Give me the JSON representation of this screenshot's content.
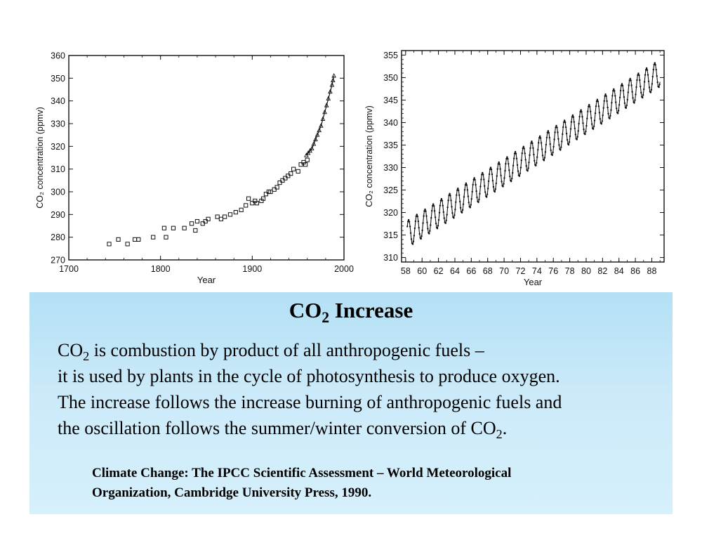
{
  "chart_data": [
    {
      "type": "scatter",
      "title": "",
      "xlabel": "Year",
      "ylabel": "CO₂ concentration (ppmv)",
      "xlim": [
        1700,
        2000
      ],
      "ylim": [
        270,
        360
      ],
      "x_ticks": [
        "1700",
        "1800",
        "1900",
        "2000"
      ],
      "y_ticks": [
        "270",
        "280",
        "290",
        "300",
        "310",
        "320",
        "330",
        "340",
        "350",
        "360"
      ],
      "grid": false,
      "series": [
        {
          "marker": "square",
          "points": [
            [
              1744,
              277
            ],
            [
              1754,
              279
            ],
            [
              1764,
              277
            ],
            [
              1772,
              279
            ],
            [
              1776,
              279
            ],
            [
              1792,
              280
            ],
            [
              1804,
              284
            ],
            [
              1806,
              280
            ],
            [
              1814,
              284
            ],
            [
              1826,
              284
            ],
            [
              1834,
              286
            ],
            [
              1838,
              283
            ],
            [
              1840,
              287
            ],
            [
              1846,
              286
            ],
            [
              1849,
              287
            ],
            [
              1852,
              288
            ],
            [
              1862,
              289
            ],
            [
              1866,
              288
            ],
            [
              1870,
              289
            ],
            [
              1876,
              290
            ],
            [
              1882,
              291
            ],
            [
              1888,
              292
            ],
            [
              1893,
              294
            ],
            [
              1896,
              297
            ],
            [
              1900,
              295
            ],
            [
              1903,
              296
            ],
            [
              1905,
              295
            ],
            [
              1910,
              296
            ],
            [
              1912,
              297
            ],
            [
              1915,
              299
            ],
            [
              1918,
              300
            ],
            [
              1920,
              300
            ],
            [
              1924,
              301
            ],
            [
              1927,
              302
            ],
            [
              1930,
              304
            ],
            [
              1933,
              305
            ],
            [
              1936,
              306
            ],
            [
              1939,
              307
            ],
            [
              1942,
              308
            ],
            [
              1945,
              310
            ],
            [
              1950,
              309
            ],
            [
              1953,
              312
            ],
            [
              1956,
              313
            ],
            [
              1958,
              312
            ],
            [
              1960,
              314
            ]
          ]
        },
        {
          "marker": "triangle",
          "points": [
            [
              1959,
              316
            ],
            [
              1961,
              317
            ],
            [
              1963,
              318
            ],
            [
              1965,
              319
            ],
            [
              1967,
              321
            ],
            [
              1969,
              323
            ],
            [
              1971,
              325
            ],
            [
              1973,
              327
            ],
            [
              1975,
              329
            ],
            [
              1977,
              332
            ],
            [
              1979,
              335
            ],
            [
              1981,
              338
            ],
            [
              1983,
              341
            ],
            [
              1985,
              344
            ],
            [
              1987,
              347
            ],
            [
              1988,
              349
            ],
            [
              1989,
              351
            ]
          ]
        }
      ]
    },
    {
      "type": "line",
      "title": "",
      "xlabel": "Year",
      "ylabel": "CO₂ concentration (ppmv)",
      "xlim": [
        57.5,
        89.5
      ],
      "ylim": [
        309,
        356
      ],
      "x_ticks": [
        "58",
        "60",
        "62",
        "64",
        "66",
        "68",
        "70",
        "72",
        "74",
        "76",
        "78",
        "80",
        "82",
        "84",
        "86",
        "88"
      ],
      "y_ticks": [
        "310",
        "315",
        "320",
        "325",
        "330",
        "335",
        "340",
        "345",
        "350",
        "355"
      ],
      "grid": false,
      "series": [
        {
          "description": "Monthly CO2 record with seasonal oscillation",
          "trend_start_year": 58.2,
          "trend_start_value": 315.2,
          "trend_end_year": 89.0,
          "trend_end_value": 351.0,
          "seasonal_amplitude_ppmv": 3.0,
          "cycles": 31
        }
      ]
    }
  ],
  "caption": {
    "title_pre": "CO",
    "title_sub": "2",
    "title_post": " Increase",
    "line1_pre": "CO",
    "line1_sub": "2",
    "line1_post": " is combustion by product of all anthropogenic fuels –",
    "line2": "it is used by plants in the cycle of photosynthesis to produce oxygen.",
    "line3": "The increase follows the increase burning of anthropogenic fuels and",
    "line4_pre": "the oscillation follows the summer/winter conversion of CO",
    "line4_sub": "2",
    "line4_post": ".",
    "citation_line1": "Climate Change: The IPCC Scientific Assessment – World Meteorological",
    "citation_line2": "Organization, Cambridge University Press, 1990."
  },
  "colors": {
    "caption_bg": "#c6e8f8",
    "ink": "#000000"
  }
}
